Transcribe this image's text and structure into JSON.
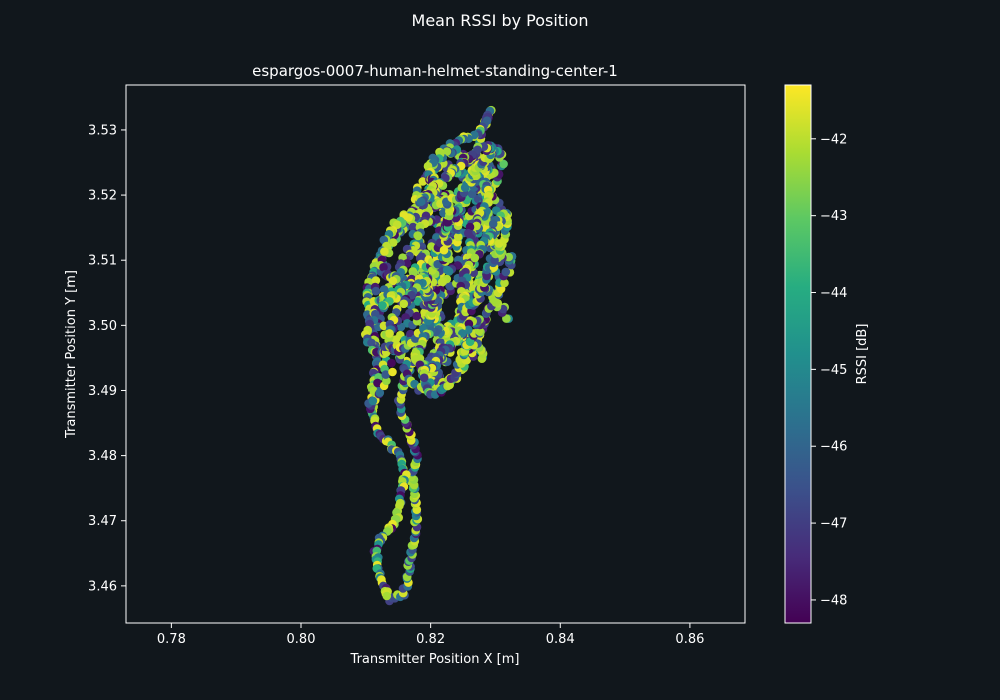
{
  "figure": {
    "suptitle": "Mean RSSI by Position",
    "background": "#11171c",
    "axes_face": "#11171c",
    "text_color": "#ffffff"
  },
  "chart_data": {
    "type": "scatter",
    "title": "espargos-0007-human-helmet-standing-center-1",
    "xlabel": "Transmitter Position X [m]",
    "ylabel": "Transmitter Position Y [m]",
    "xlim": [
      0.773,
      0.8685
    ],
    "ylim": [
      3.4543,
      3.5369
    ],
    "xticks": [
      0.78,
      0.8,
      0.82,
      0.84,
      0.86
    ],
    "xtick_labels": [
      "0.78",
      "0.80",
      "0.82",
      "0.84",
      "0.86"
    ],
    "yticks": [
      3.46,
      3.47,
      3.48,
      3.49,
      3.5,
      3.51,
      3.52,
      3.53
    ],
    "ytick_labels": [
      "3.46",
      "3.47",
      "3.48",
      "3.49",
      "3.50",
      "3.51",
      "3.52",
      "3.53"
    ],
    "grid": false,
    "colormap": "viridis",
    "colorbar": {
      "label": "RSSI [dB]",
      "range": [
        -48.3,
        -41.3
      ],
      "ticks": [
        -48,
        -47,
        -46,
        -45,
        -44,
        -43,
        -42
      ],
      "tick_labels": [
        "−48",
        "−47",
        "−46",
        "−45",
        "−44",
        "−43",
        "−42"
      ]
    },
    "trajectory_waypoints": [
      [
        0.8136,
        3.4578
      ],
      [
        0.8155,
        3.4585
      ],
      [
        0.8165,
        3.4605
      ],
      [
        0.8168,
        3.464
      ],
      [
        0.8177,
        3.468
      ],
      [
        0.8178,
        3.472
      ],
      [
        0.8172,
        3.476
      ],
      [
        0.8178,
        3.4795
      ],
      [
        0.817,
        3.483
      ],
      [
        0.8157,
        3.486
      ],
      [
        0.8152,
        3.488
      ],
      [
        0.8156,
        3.4905
      ],
      [
        0.8168,
        3.4935
      ],
      [
        0.818,
        3.4965
      ],
      [
        0.819,
        3.5
      ],
      [
        0.82,
        3.504
      ],
      [
        0.8215,
        3.508
      ],
      [
        0.8228,
        3.512
      ],
      [
        0.824,
        3.516
      ],
      [
        0.8255,
        3.52
      ],
      [
        0.8265,
        3.524
      ],
      [
        0.8275,
        3.528
      ],
      [
        0.8285,
        3.531
      ],
      [
        0.8292,
        3.5333
      ],
      [
        0.8285,
        3.531
      ],
      [
        0.8268,
        3.5292
      ],
      [
        0.8245,
        3.5285
      ],
      [
        0.822,
        3.527
      ],
      [
        0.8205,
        3.524
      ],
      [
        0.8195,
        3.52
      ],
      [
        0.818,
        3.517
      ],
      [
        0.816,
        3.515
      ],
      [
        0.814,
        3.513
      ],
      [
        0.812,
        3.51
      ],
      [
        0.8104,
        3.506
      ],
      [
        0.8102,
        3.503
      ],
      [
        0.811,
        3.5
      ],
      [
        0.8118,
        3.4965
      ],
      [
        0.8115,
        3.4935
      ],
      [
        0.811,
        3.49
      ],
      [
        0.8112,
        3.486
      ],
      [
        0.8118,
        3.4835
      ],
      [
        0.8135,
        3.482
      ],
      [
        0.815,
        3.48
      ],
      [
        0.816,
        3.477
      ],
      [
        0.8155,
        3.474
      ],
      [
        0.815,
        3.471
      ],
      [
        0.814,
        3.469
      ],
      [
        0.8125,
        3.4675
      ],
      [
        0.8115,
        3.4655
      ],
      [
        0.812,
        3.4625
      ],
      [
        0.8128,
        3.46
      ],
      [
        0.8136,
        3.4578
      ]
    ],
    "inner_loops": [
      {
        "center": [
          0.8205,
          3.505
        ],
        "rx": 0.008,
        "ry": 0.014,
        "turns": 2.0
      },
      {
        "center": [
          0.8235,
          3.515
        ],
        "rx": 0.0065,
        "ry": 0.0095,
        "turns": 2.2
      },
      {
        "center": [
          0.8255,
          3.501
        ],
        "rx": 0.0055,
        "ry": 0.008,
        "turns": 1.8
      },
      {
        "center": [
          0.8185,
          3.512
        ],
        "rx": 0.005,
        "ry": 0.007,
        "turns": 1.6
      },
      {
        "center": [
          0.824,
          3.523
        ],
        "rx": 0.0045,
        "ry": 0.0035,
        "turns": 1.5
      },
      {
        "center": [
          0.816,
          3.501
        ],
        "rx": 0.0045,
        "ry": 0.006,
        "turns": 1.4
      },
      {
        "center": [
          0.8225,
          3.495
        ],
        "rx": 0.0045,
        "ry": 0.0045,
        "turns": 1.4
      },
      {
        "center": [
          0.828,
          3.51
        ],
        "rx": 0.003,
        "ry": 0.006,
        "turns": 1.3
      }
    ],
    "marker": {
      "shape": "circle",
      "size_data_note": "uniform"
    }
  }
}
